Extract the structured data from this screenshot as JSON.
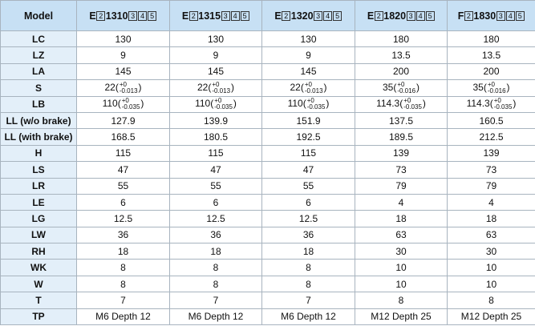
{
  "table": {
    "header": [
      "Model",
      {
        "prefix": "E",
        "box": "2",
        "code": "1310",
        "suffix_boxes": [
          "3",
          "4",
          "5"
        ]
      },
      {
        "prefix": "E",
        "box": "2",
        "code": "1315",
        "suffix_boxes": [
          "3",
          "4",
          "5"
        ]
      },
      {
        "prefix": "E",
        "box": "2",
        "code": "1320",
        "suffix_boxes": [
          "3",
          "4",
          "5"
        ]
      },
      {
        "prefix": "E",
        "box": "2",
        "code": "1820",
        "suffix_boxes": [
          "3",
          "4",
          "5"
        ]
      },
      {
        "prefix": "F",
        "box": "2",
        "code": "1830",
        "suffix_boxes": [
          "3",
          "4",
          "5"
        ]
      }
    ],
    "rows": [
      [
        "LC",
        "130",
        "130",
        "130",
        "180",
        "180"
      ],
      [
        "LZ",
        "9",
        "9",
        "9",
        "13.5",
        "13.5"
      ],
      [
        "LA",
        "145",
        "145",
        "145",
        "200",
        "200"
      ],
      [
        "S",
        {
          "base": "22(",
          "upper": "+0",
          "lower": "-0.013",
          "close": ")"
        },
        {
          "base": "22(",
          "upper": "+0",
          "lower": "-0.013",
          "close": ")"
        },
        {
          "base": "22(",
          "upper": "+0",
          "lower": "-0.013",
          "close": ")"
        },
        {
          "base": "35(",
          "upper": "+0",
          "lower": "-0.016",
          "close": ")"
        },
        {
          "base": "35(",
          "upper": "+0",
          "lower": "-0.016",
          "close": ")"
        }
      ],
      [
        "LB",
        {
          "base": "110(",
          "upper": "+0",
          "lower": "-0.035",
          "close": ")"
        },
        {
          "base": "110(",
          "upper": "+0",
          "lower": "-0.035",
          "close": ")"
        },
        {
          "base": "110(",
          "upper": "+0",
          "lower": "-0.035",
          "close": ")"
        },
        {
          "base": "114.3(",
          "upper": "+0",
          "lower": "-0.035",
          "close": ")"
        },
        {
          "base": "114.3(",
          "upper": "+0",
          "lower": "-0.035",
          "close": ")"
        }
      ],
      [
        "LL (w/o brake)",
        "127.9",
        "139.9",
        "151.9",
        "137.5",
        "160.5"
      ],
      [
        "LL (with brake)",
        "168.5",
        "180.5",
        "192.5",
        "189.5",
        "212.5"
      ],
      [
        "H",
        "115",
        "115",
        "115",
        "139",
        "139"
      ],
      [
        "LS",
        "47",
        "47",
        "47",
        "73",
        "73"
      ],
      [
        "LR",
        "55",
        "55",
        "55",
        "79",
        "79"
      ],
      [
        "LE",
        "6",
        "6",
        "6",
        "4",
        "4"
      ],
      [
        "LG",
        "12.5",
        "12.5",
        "12.5",
        "18",
        "18"
      ],
      [
        "LW",
        "36",
        "36",
        "36",
        "63",
        "63"
      ],
      [
        "RH",
        "18",
        "18",
        "18",
        "30",
        "30"
      ],
      [
        "WK",
        "8",
        "8",
        "8",
        "10",
        "10"
      ],
      [
        "W",
        "8",
        "8",
        "8",
        "10",
        "10"
      ],
      [
        "T",
        "7",
        "7",
        "7",
        "8",
        "8"
      ],
      [
        "TP",
        "M6 Depth 12",
        "M6 Depth 12",
        "M6 Depth 12",
        "M12 Depth 25",
        "M12 Depth 25"
      ]
    ]
  }
}
